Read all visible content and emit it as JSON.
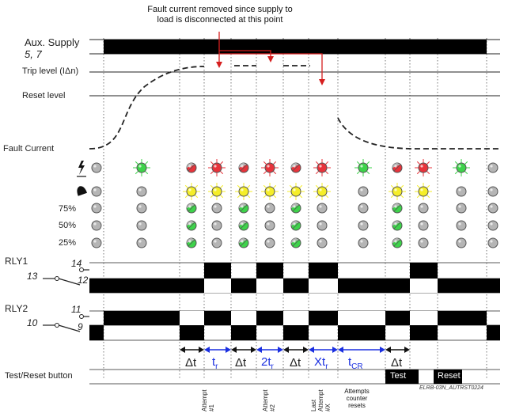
{
  "annotation": "Fault current removed since supply to load is disconnected at this point",
  "labels": {
    "aux_supply": "Aux. Supply",
    "aux_terminals": "5, 7",
    "trip_level": "Trip level (IΔn)",
    "reset_level": "Reset level",
    "fault_current": "Fault Current",
    "pct75": "75%",
    "pct50": "50%",
    "pct25": "25%",
    "rly1": "RLY1",
    "rly2": "RLY2",
    "term14": "14",
    "term13": "13",
    "term12": "12",
    "term11": "11",
    "term10": "10",
    "term9": "9",
    "test_reset_button": "Test/Reset button",
    "test": "Test",
    "reset": "Reset",
    "code": "ELRB-03N_AUTRST0224"
  },
  "timing": {
    "dt": "Δt",
    "tr": "t",
    "tr_sub": "r",
    "two_tr": "2t",
    "two_tr_sub": "r",
    "x_tr": "Xt",
    "x_tr_sub": "r",
    "tcr": "t",
    "tcr_sub": "CR"
  },
  "attempts": {
    "a1": [
      "Attempt",
      "#1"
    ],
    "a2": [
      "Attempt",
      "#2"
    ],
    "last": [
      "Last",
      "Attempt",
      "#X"
    ],
    "counter": [
      "Attempts",
      "counter",
      "resets"
    ]
  },
  "colors": {
    "green": "#3dd34a",
    "red": "#e8333b",
    "yellow": "#f5ee28",
    "grey": "#9a9a9a",
    "blue": "#1a2fe0",
    "arrow_red": "#d61e1e"
  },
  "icons": {
    "fault_led_icon": "lightning-earth-icon",
    "alarm_led_icon": "bell-icon"
  }
}
